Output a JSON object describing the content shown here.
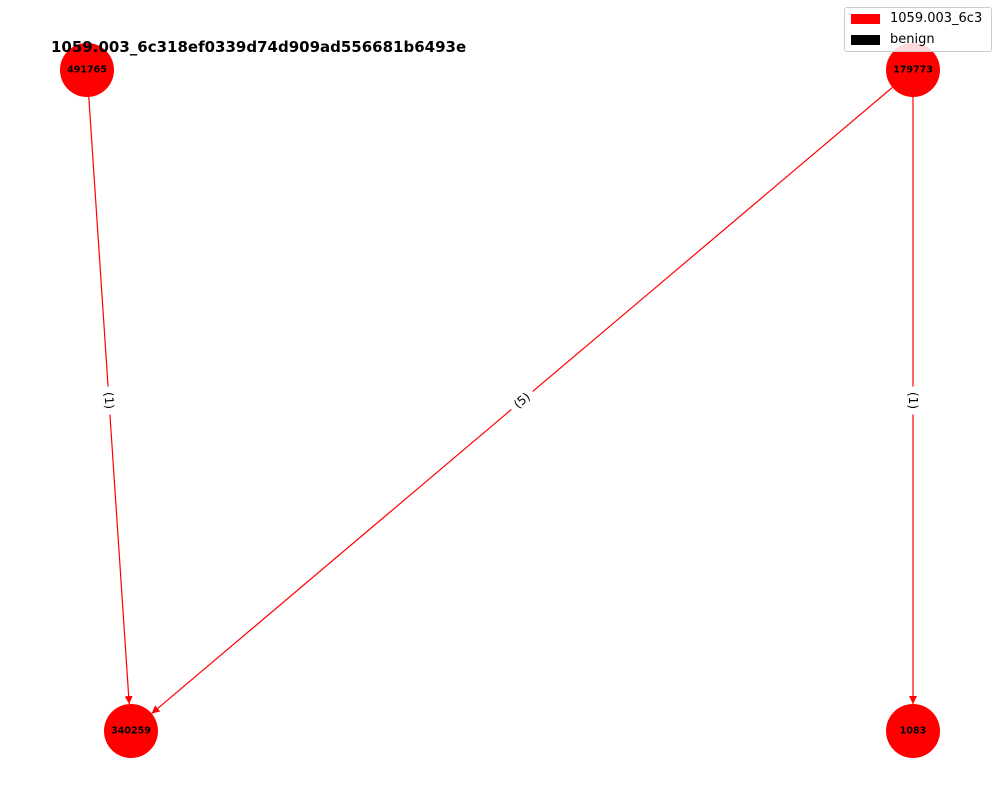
{
  "title": "1059.003_6c318ef0339d74d909ad556681b6493e",
  "colors": {
    "malicious": "#ff0000",
    "benign": "#000000",
    "edge": "#ff0000"
  },
  "legend": [
    {
      "label": "1059.003_6c3",
      "color": "#ff0000"
    },
    {
      "label": "benign",
      "color": "#000000"
    }
  ],
  "nodes": [
    {
      "id": "491765",
      "label": "491765"
    },
    {
      "id": "179773",
      "label": "179773"
    },
    {
      "id": "340259",
      "label": "340259"
    },
    {
      "id": "1083",
      "label": "1083"
    }
  ],
  "edges": [
    {
      "source": "491765",
      "target": "340259",
      "label": "(1)"
    },
    {
      "source": "179773",
      "target": "340259",
      "label": "(5)"
    },
    {
      "source": "179773",
      "target": "1083",
      "label": "(1)"
    }
  ]
}
